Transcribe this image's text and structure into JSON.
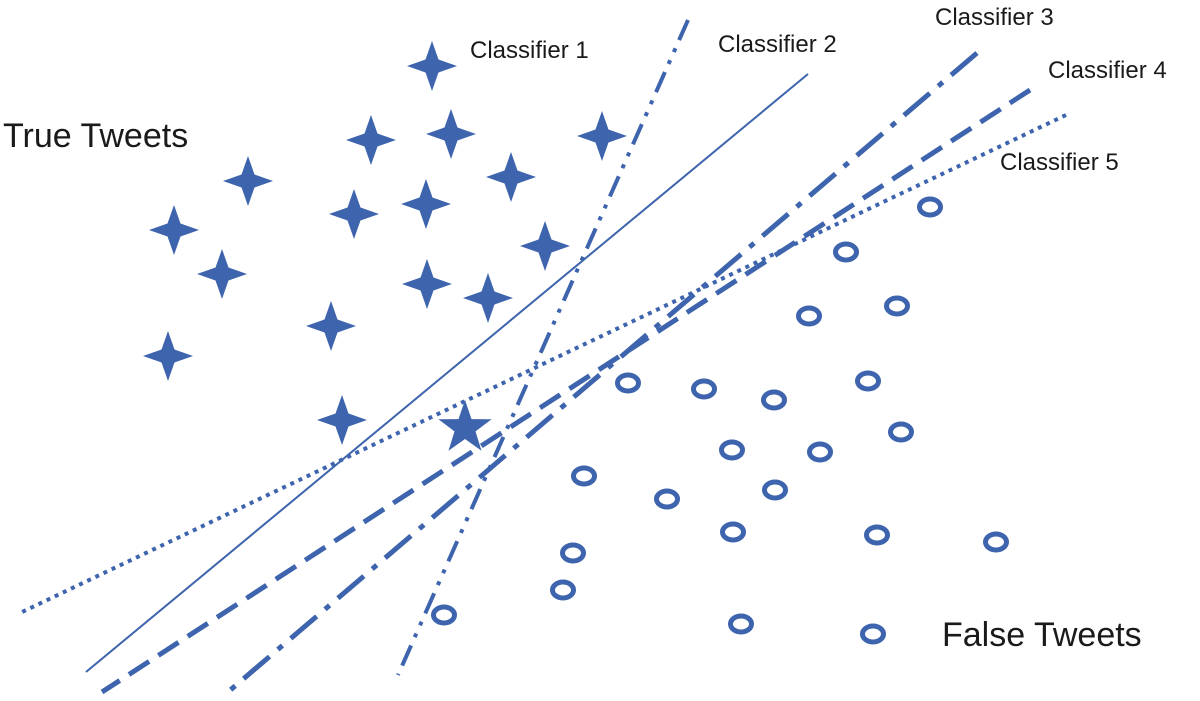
{
  "labels": {
    "true_tweets": "True Tweets",
    "false_tweets": "False Tweets"
  },
  "classifiers": [
    {
      "name": "Classifier 1",
      "style": "dash-dot-dot"
    },
    {
      "name": "Classifier 2",
      "style": "solid"
    },
    {
      "name": "Classifier 3",
      "style": "long-dash-dot"
    },
    {
      "name": "Classifier 4",
      "style": "dashed"
    },
    {
      "name": "Classifier 5",
      "style": "dotted"
    }
  ],
  "colors": {
    "primary": "#3d64ad"
  },
  "icons": {
    "true_marker": "four-point-star-icon",
    "false_marker": "ring-icon",
    "unknown_marker": "five-point-star-icon"
  }
}
